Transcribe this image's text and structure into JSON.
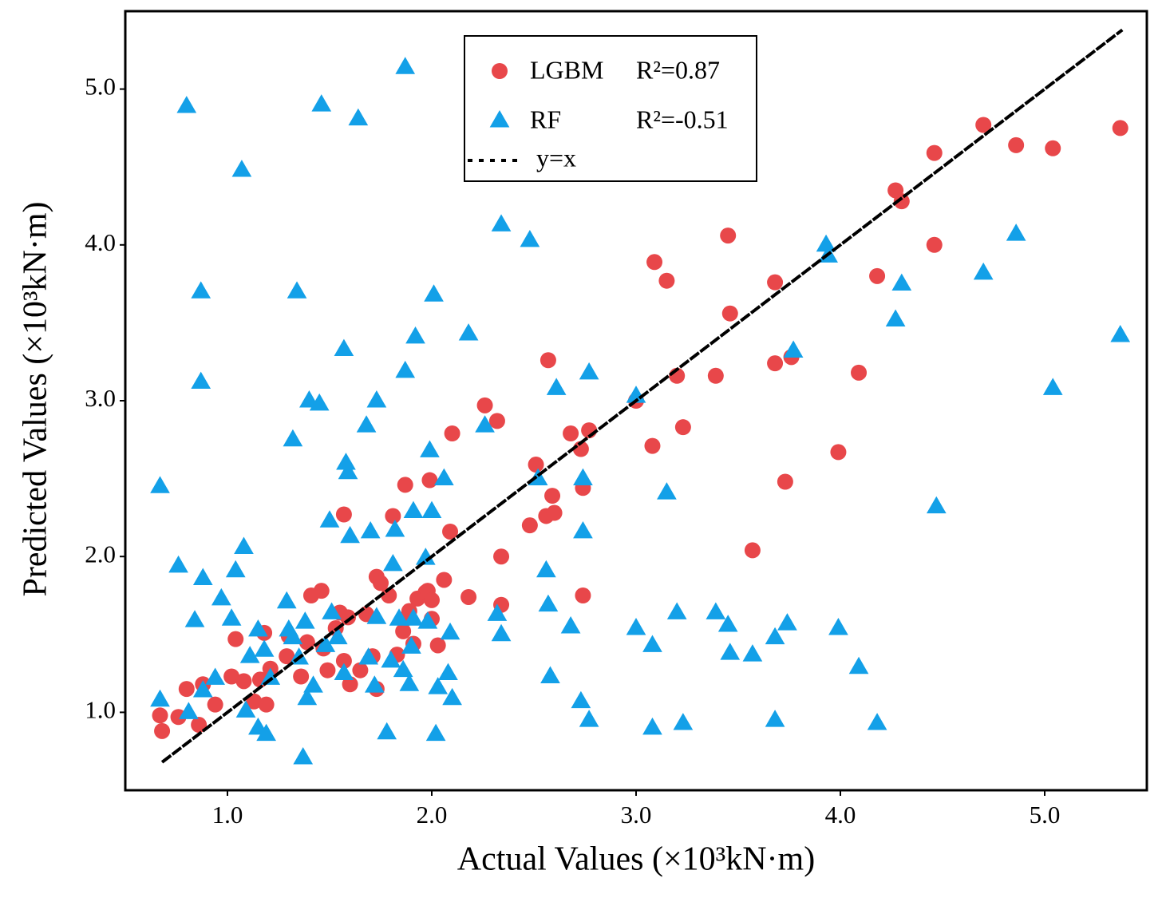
{
  "chart_data": {
    "type": "scatter",
    "x_label": "Actual Values (×10³kN·m)",
    "y_label": "Predicted Values (×10³kN·m)",
    "xlim": [
      0.5,
      5.5
    ],
    "ylim": [
      0.5,
      5.5
    ],
    "xticks": [
      {
        "value": 1,
        "label": "1.0"
      },
      {
        "value": 2,
        "label": "2.0"
      },
      {
        "value": 3,
        "label": "3.0"
      },
      {
        "value": 4,
        "label": "4.0"
      },
      {
        "value": 5,
        "label": "5.0"
      }
    ],
    "yticks": [
      {
        "value": 1,
        "label": "1.0"
      },
      {
        "value": 2,
        "label": "2.0"
      },
      {
        "value": 3,
        "label": "3.0"
      },
      {
        "value": 4,
        "label": "4.0"
      },
      {
        "value": 5,
        "label": "5.0"
      }
    ],
    "legend": "upper center",
    "series": [
      {
        "name": "LGBM",
        "annotation": "R²=0.87",
        "color": "#e8474a",
        "marker": "circle",
        "x": [
          0.67,
          0.68,
          0.8,
          0.76,
          0.88,
          0.86,
          0.94,
          1.04,
          1.02,
          1.08,
          1.13,
          1.16,
          1.19,
          1.18,
          1.21,
          1.29,
          1.3,
          1.36,
          1.39,
          1.41,
          1.46,
          1.47,
          1.49,
          1.53,
          1.55,
          1.57,
          1.57,
          1.59,
          1.6,
          1.65,
          1.68,
          1.71,
          1.73,
          1.73,
          1.75,
          1.79,
          1.81,
          1.83,
          1.86,
          1.87,
          1.87,
          1.89,
          1.91,
          1.93,
          1.97,
          1.98,
          1.99,
          2.0,
          2.0,
          2.03,
          2.06,
          2.09,
          2.1,
          2.18,
          2.26,
          2.32,
          2.34,
          2.34,
          2.48,
          2.51,
          2.56,
          2.57,
          2.59,
          2.6,
          2.68,
          2.73,
          2.74,
          2.74,
          2.77,
          3.0,
          3.08,
          3.09,
          3.15,
          3.2,
          3.23,
          3.39,
          3.45,
          3.46,
          3.57,
          3.68,
          3.68,
          3.73,
          3.76,
          3.99,
          4.09,
          4.18,
          4.27,
          4.3,
          4.46,
          4.46,
          4.7,
          4.86,
          5.04,
          5.37
        ],
        "values": [
          0.98,
          0.88,
          1.15,
          0.97,
          1.18,
          0.92,
          1.05,
          1.47,
          1.23,
          1.2,
          1.07,
          1.21,
          1.05,
          1.51,
          1.28,
          1.36,
          1.49,
          1.23,
          1.45,
          1.75,
          1.78,
          1.41,
          1.27,
          1.54,
          1.64,
          1.33,
          2.27,
          1.61,
          1.18,
          1.27,
          1.63,
          1.36,
          1.87,
          1.15,
          1.83,
          1.75,
          2.26,
          1.37,
          1.52,
          2.46,
          1.6,
          1.65,
          1.44,
          1.73,
          1.77,
          1.78,
          2.49,
          1.6,
          1.72,
          1.43,
          1.85,
          2.16,
          2.79,
          1.74,
          2.97,
          2.87,
          2.0,
          1.69,
          2.2,
          2.59,
          2.26,
          3.26,
          2.39,
          2.28,
          2.79,
          2.69,
          2.44,
          1.75,
          2.81,
          3.0,
          2.71,
          3.89,
          3.77,
          3.16,
          2.83,
          3.16,
          4.06,
          3.56,
          2.04,
          3.76,
          3.24,
          2.48,
          3.28,
          2.67,
          3.18,
          3.8,
          4.35,
          4.28,
          4.59,
          4.0,
          4.77,
          4.64,
          4.62,
          4.75
        ]
      },
      {
        "name": "RF",
        "annotation": "R²=-0.51",
        "color": "#13a0e8",
        "marker": "triangle",
        "x": [
          0.67,
          0.67,
          0.76,
          0.8,
          0.84,
          0.87,
          0.87,
          0.88,
          0.88,
          0.81,
          0.94,
          0.97,
          1.02,
          1.04,
          1.07,
          1.08,
          1.09,
          1.11,
          1.15,
          1.15,
          1.19,
          1.18,
          1.21,
          1.29,
          1.32,
          1.34,
          1.3,
          1.32,
          1.35,
          1.37,
          1.38,
          1.39,
          1.4,
          1.42,
          1.45,
          1.46,
          1.48,
          1.5,
          1.51,
          1.54,
          1.57,
          1.57,
          1.58,
          1.59,
          1.6,
          1.64,
          1.68,
          1.69,
          1.7,
          1.72,
          1.73,
          1.73,
          1.78,
          1.8,
          1.81,
          1.82,
          1.84,
          1.86,
          1.87,
          1.87,
          1.89,
          1.9,
          1.91,
          1.91,
          1.92,
          1.97,
          1.98,
          1.99,
          2.0,
          2.01,
          2.02,
          2.03,
          2.06,
          2.08,
          2.09,
          2.1,
          2.18,
          2.26,
          2.32,
          2.34,
          2.34,
          2.48,
          2.52,
          2.56,
          2.57,
          2.58,
          2.61,
          2.68,
          2.73,
          2.74,
          2.74,
          2.77,
          2.77,
          3.0,
          3.0,
          3.08,
          3.08,
          3.15,
          3.2,
          3.23,
          3.39,
          3.45,
          3.46,
          3.57,
          3.68,
          3.68,
          3.74,
          3.77,
          3.93,
          3.94,
          3.99,
          4.09,
          4.18,
          4.27,
          4.3,
          4.47,
          4.7,
          4.86,
          5.04,
          5.37
        ],
        "values": [
          1.08,
          2.45,
          1.94,
          4.89,
          1.59,
          3.12,
          3.7,
          1.86,
          1.14,
          1.0,
          1.22,
          1.73,
          1.6,
          1.91,
          4.48,
          2.06,
          1.01,
          1.36,
          1.53,
          0.9,
          0.86,
          1.4,
          1.22,
          1.71,
          2.75,
          3.7,
          1.53,
          1.48,
          1.35,
          0.71,
          1.58,
          1.09,
          3.0,
          1.17,
          2.98,
          4.9,
          1.43,
          2.23,
          1.64,
          1.48,
          1.25,
          3.33,
          2.6,
          2.54,
          2.13,
          4.81,
          2.84,
          1.35,
          2.16,
          1.17,
          3.0,
          1.61,
          0.87,
          1.33,
          1.95,
          2.17,
          1.6,
          1.27,
          5.14,
          3.19,
          1.18,
          1.42,
          2.29,
          1.6,
          3.41,
          1.99,
          1.58,
          2.68,
          2.29,
          3.68,
          0.86,
          1.16,
          2.5,
          1.25,
          1.51,
          1.09,
          3.43,
          2.84,
          1.63,
          4.13,
          1.5,
          4.03,
          2.5,
          1.91,
          1.69,
          1.23,
          3.08,
          1.55,
          1.07,
          2.5,
          2.16,
          3.18,
          0.95,
          1.54,
          3.03,
          1.43,
          0.9,
          2.41,
          1.64,
          0.93,
          1.64,
          1.56,
          1.38,
          1.37,
          1.48,
          0.95,
          1.57,
          3.32,
          4.0,
          3.93,
          1.54,
          1.29,
          0.93,
          3.52,
          3.75,
          2.32,
          3.82,
          4.07,
          3.08,
          3.42
        ]
      }
    ],
    "reference_line": {
      "name": "y=x",
      "color": "#000000",
      "x": [
        0.68,
        5.38
      ],
      "values": [
        0.68,
        5.38
      ]
    }
  }
}
